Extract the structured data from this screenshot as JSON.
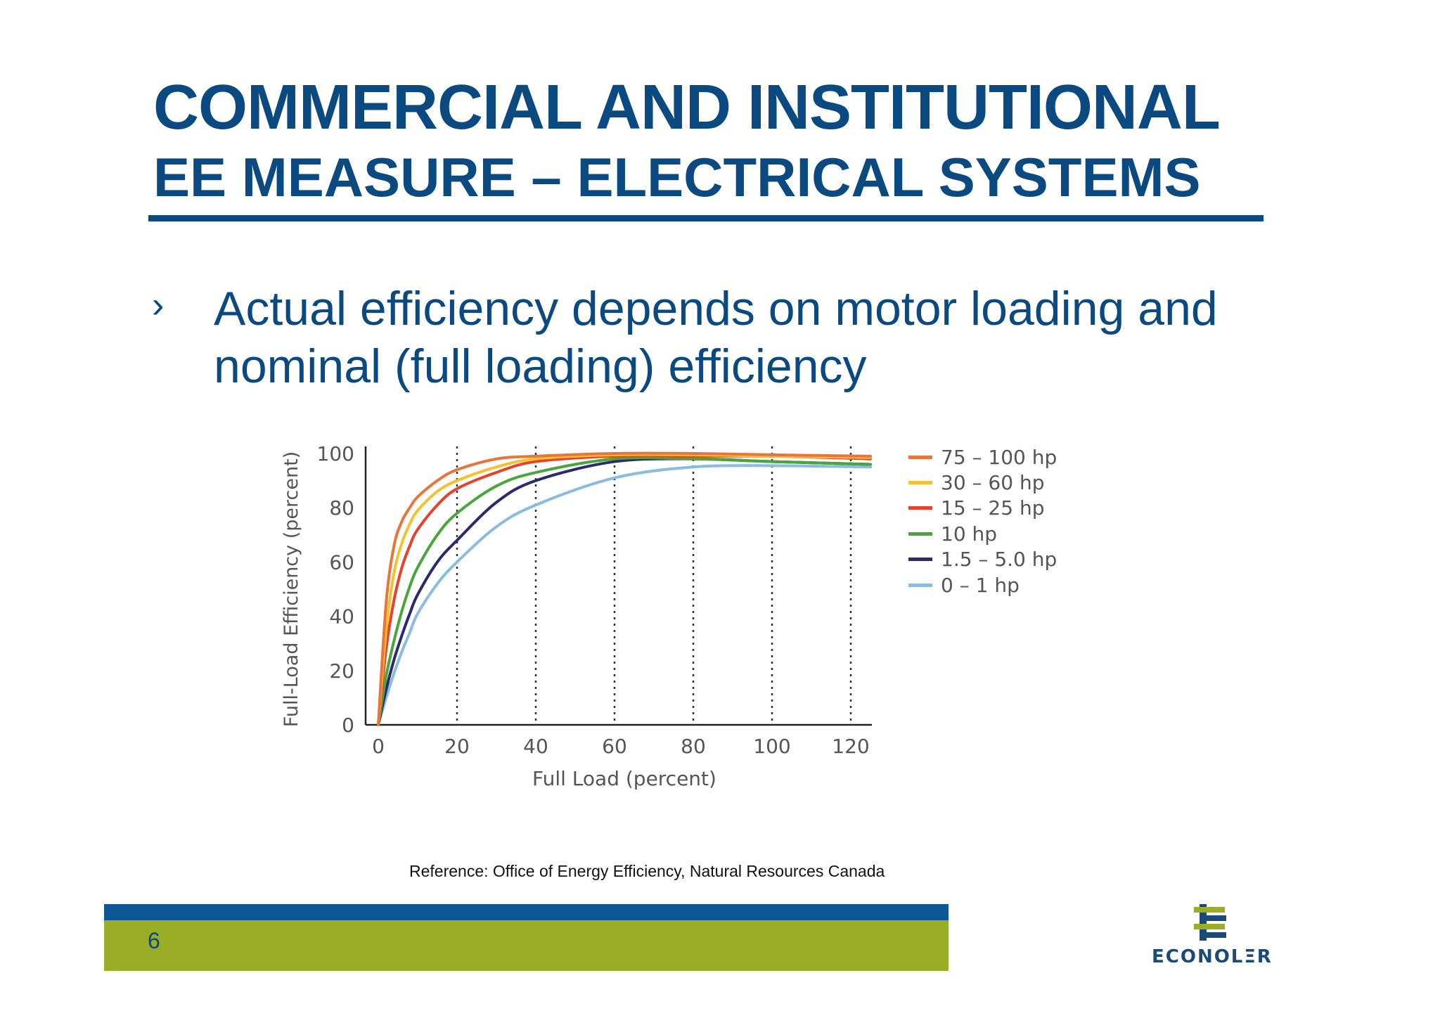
{
  "slide": {
    "title_line1": "COMMERCIAL AND INSTITUTIONAL",
    "title_line2": "EE MEASURE – ELECTRICAL SYSTEMS",
    "bullet_marker": "›",
    "bullet_text": "Actual efficiency depends on motor loading and nominal (full loading) efficiency",
    "reference": "Reference: Office of Energy Efficiency, Natural Resources Canada",
    "page_number": "6",
    "logo_text": "ECONOLΞR",
    "colors": {
      "title": "#0a4a80",
      "footer_blue": "#0d5796",
      "footer_green": "#99ad26"
    }
  },
  "chart_data": {
    "type": "line",
    "xlabel": "Full Load (percent)",
    "ylabel": "Full-Load Efficiency (percent)",
    "xlim": [
      0,
      125
    ],
    "ylim": [
      0,
      100
    ],
    "x_ticks": [
      0,
      20,
      40,
      60,
      80,
      100,
      120
    ],
    "y_ticks": [
      0,
      20,
      40,
      60,
      80,
      100
    ],
    "vertical_gridlines": [
      20,
      40,
      60,
      80,
      100,
      120
    ],
    "grid_style": "dotted vertical lines",
    "legend_position": "right",
    "series": [
      {
        "name": "75 – 100 hp",
        "color": "#e8763a",
        "x": [
          0,
          2,
          4,
          6,
          8,
          10,
          15,
          20,
          30,
          40,
          60,
          80,
          100,
          125
        ],
        "y": [
          0,
          45,
          66,
          75,
          80,
          84,
          90,
          94,
          98,
          99,
          100,
          100,
          99.5,
          99
        ]
      },
      {
        "name": "30 – 60 hp",
        "color": "#f2c230",
        "x": [
          0,
          2,
          4,
          6,
          8,
          10,
          15,
          20,
          30,
          40,
          60,
          80,
          100,
          125
        ],
        "y": [
          0,
          35,
          56,
          67,
          74,
          79,
          86,
          90,
          95,
          98,
          99.5,
          99.5,
          99,
          98.5
        ]
      },
      {
        "name": "15 – 25 hp",
        "color": "#e8412e",
        "x": [
          0,
          2,
          4,
          6,
          8,
          10,
          15,
          20,
          30,
          40,
          60,
          80,
          100,
          125
        ],
        "y": [
          0,
          28,
          46,
          58,
          66,
          72,
          81,
          87,
          93,
          97,
          99,
          99,
          99,
          98
        ]
      },
      {
        "name": "10 hp",
        "color": "#4aa63c",
        "x": [
          0,
          2,
          4,
          6,
          8,
          10,
          15,
          20,
          30,
          40,
          60,
          80,
          100,
          125
        ],
        "y": [
          0,
          18,
          31,
          42,
          51,
          58,
          70,
          78,
          88,
          93,
          98,
          98,
          97,
          96
        ]
      },
      {
        "name": "1.5 – 5.0 hp",
        "color": "#2a2a6e",
        "x": [
          0,
          2,
          4,
          6,
          8,
          10,
          15,
          20,
          30,
          40,
          60,
          80,
          100,
          125
        ],
        "y": [
          0,
          13,
          24,
          33,
          41,
          48,
          60,
          68,
          82,
          90,
          97,
          98,
          97,
          96
        ]
      },
      {
        "name": "0 – 1 hp",
        "color": "#88bce0",
        "x": [
          0,
          2,
          4,
          6,
          8,
          10,
          15,
          20,
          30,
          40,
          60,
          80,
          100,
          125
        ],
        "y": [
          0,
          10,
          19,
          27,
          34,
          41,
          52,
          60,
          73,
          81,
          91,
          95,
          95.5,
          95
        ]
      }
    ]
  }
}
